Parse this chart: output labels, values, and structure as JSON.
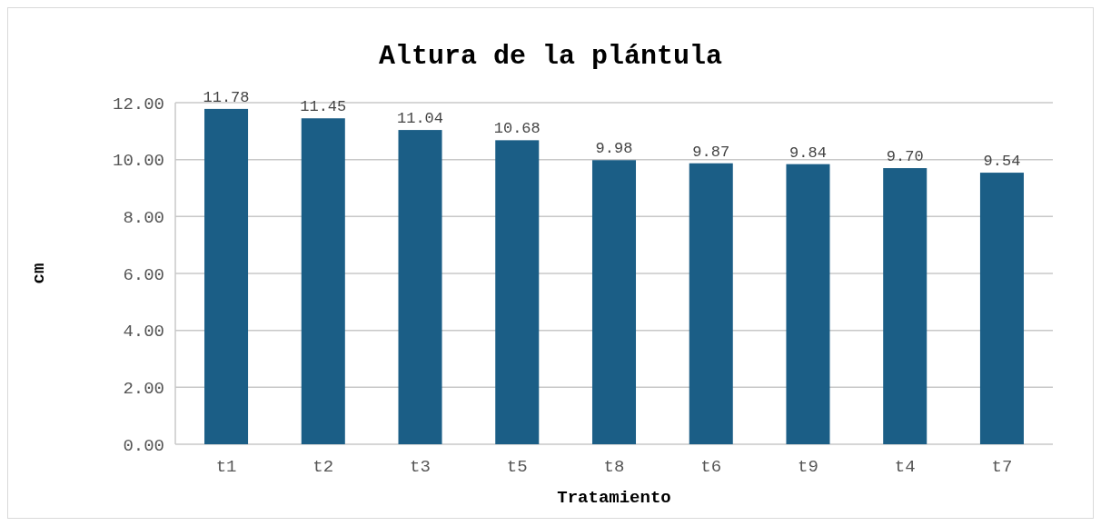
{
  "chart_data": {
    "type": "bar",
    "title": "Altura de la plántula",
    "xlabel": "Tratamiento",
    "ylabel": "cm",
    "categories": [
      "t1",
      "t2",
      "t3",
      "t5",
      "t8",
      "t6",
      "t9",
      "t4",
      "t7"
    ],
    "values": [
      11.78,
      11.45,
      11.04,
      10.68,
      9.98,
      9.87,
      9.84,
      9.7,
      9.54
    ],
    "color": "#1b5e86",
    "ylim": [
      0,
      12
    ],
    "yticks": [
      {
        "value": 0,
        "label": "0.00"
      },
      {
        "value": 2,
        "label": "2.00"
      },
      {
        "value": 4,
        "label": "4.00"
      },
      {
        "value": 6,
        "label": "6.00"
      },
      {
        "value": 8,
        "label": "8.00"
      },
      {
        "value": 10,
        "label": "10.00"
      },
      {
        "value": 12,
        "label": "12.00"
      }
    ],
    "value_labels": [
      "11.78",
      "11.45",
      "11.04",
      "10.68",
      "9.98",
      "9.87",
      "9.84",
      "9.70",
      "9.54"
    ],
    "grid": true
  }
}
